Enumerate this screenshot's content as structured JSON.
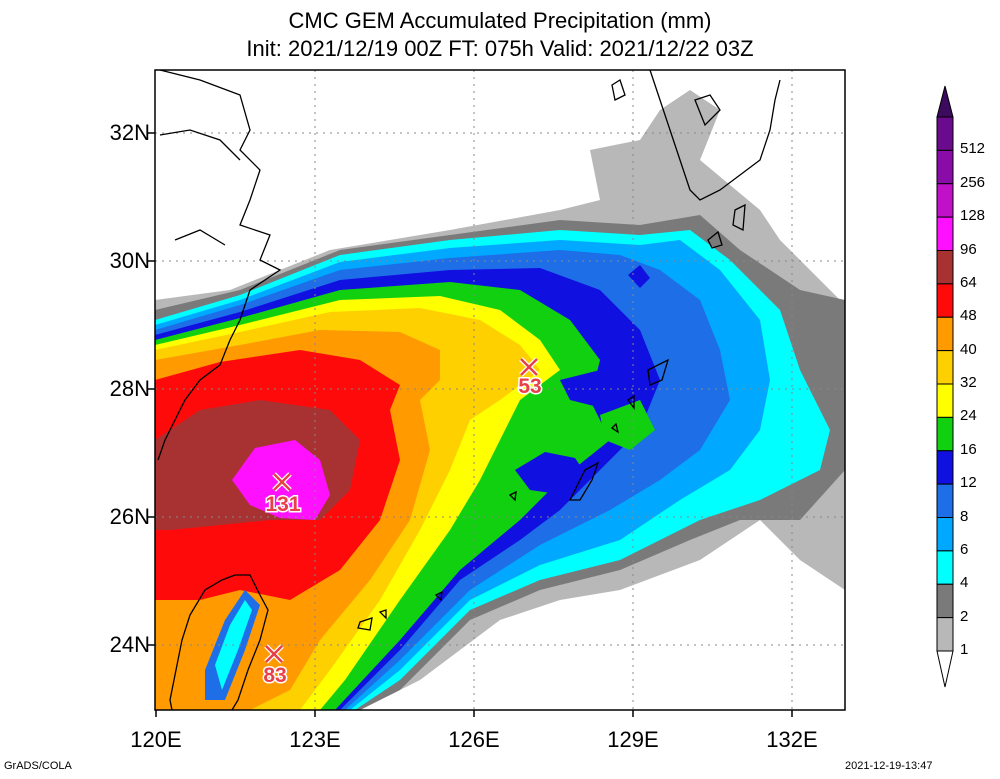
{
  "title": {
    "line1": "CMC GEM Accumulated Precipitation (mm)",
    "line2": "Init: 2021/12/19 00Z  FT: 075h  Valid: 2021/12/22 03Z"
  },
  "axes": {
    "lat_labels": [
      "32N",
      "30N",
      "28N",
      "26N",
      "24N"
    ],
    "lon_labels": [
      "120E",
      "123E",
      "126E",
      "129E",
      "132E"
    ]
  },
  "colorbar": {
    "levels": [
      "512",
      "256",
      "128",
      "96",
      "64",
      "48",
      "40",
      "32",
      "24",
      "16",
      "12",
      "8",
      "6",
      "4",
      "2",
      "1"
    ],
    "colors": [
      "#6a0a8c",
      "#8a0ca8",
      "#c010c8",
      "#ff10ff",
      "#a83232",
      "#ff0a0a",
      "#ff9a00",
      "#ffd000",
      "#ffff00",
      "#10d010",
      "#1010e0",
      "#1e6ee8",
      "#00a8ff",
      "#00ffff",
      "#7a7a7a",
      "#b8b8b8"
    ]
  },
  "markers": [
    {
      "label": "131"
    },
    {
      "label": "53"
    },
    {
      "label": "83"
    }
  ],
  "footer": {
    "left": "GrADS/COLA",
    "right": "2021-12-19-13:47"
  }
}
